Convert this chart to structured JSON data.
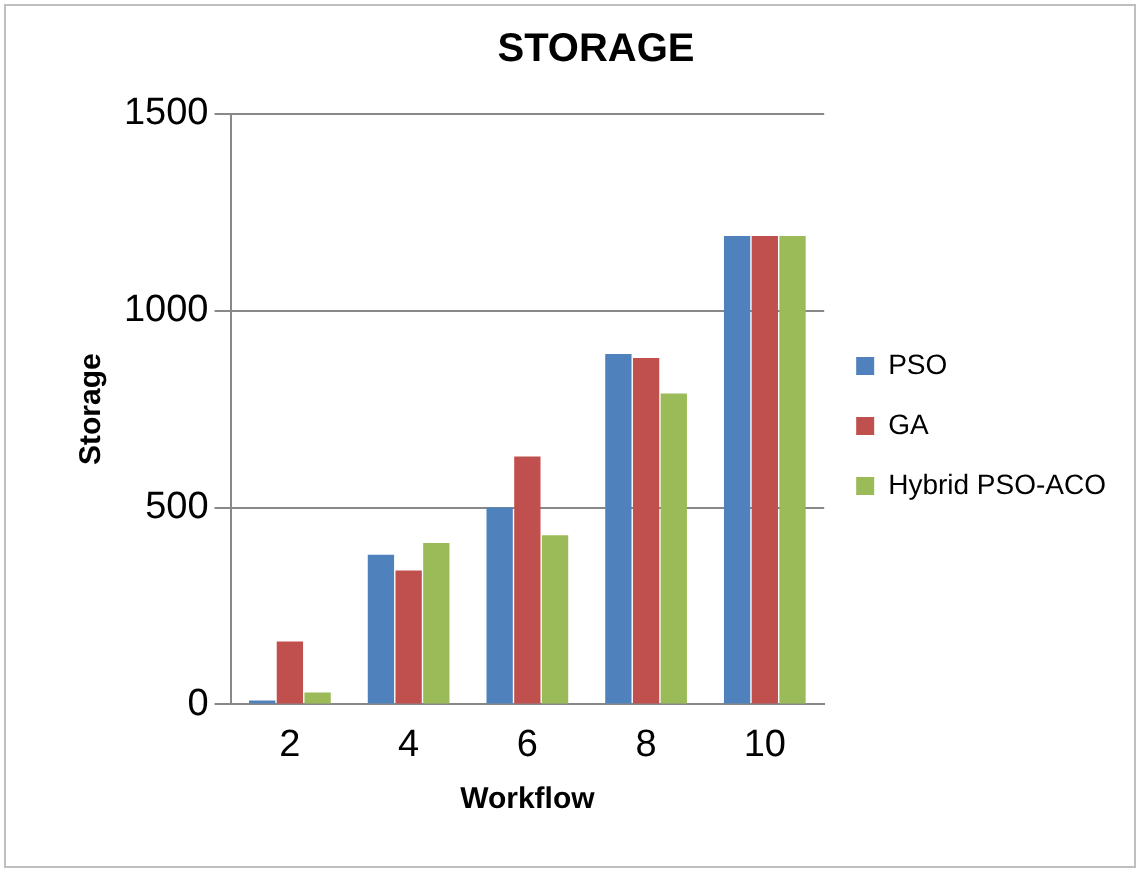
{
  "chart_data": {
    "type": "bar",
    "title": "STORAGE",
    "xlabel": "Workflow",
    "ylabel": "Storage",
    "categories": [
      "2",
      "4",
      "6",
      "8",
      "10"
    ],
    "series": [
      {
        "name": "PSO",
        "color": "#4f81bd",
        "values": [
          10,
          380,
          500,
          890,
          1190
        ]
      },
      {
        "name": "GA",
        "color": "#c0504d",
        "values": [
          160,
          340,
          630,
          880,
          1190
        ]
      },
      {
        "name": "Hybrid PSO-ACO",
        "color": "#9bbb59",
        "values": [
          30,
          410,
          430,
          790,
          1190
        ]
      }
    ],
    "ylim": [
      0,
      1500
    ],
    "yticks": [
      0,
      500,
      1000,
      1500
    ],
    "grid": "y",
    "legend": "right"
  }
}
